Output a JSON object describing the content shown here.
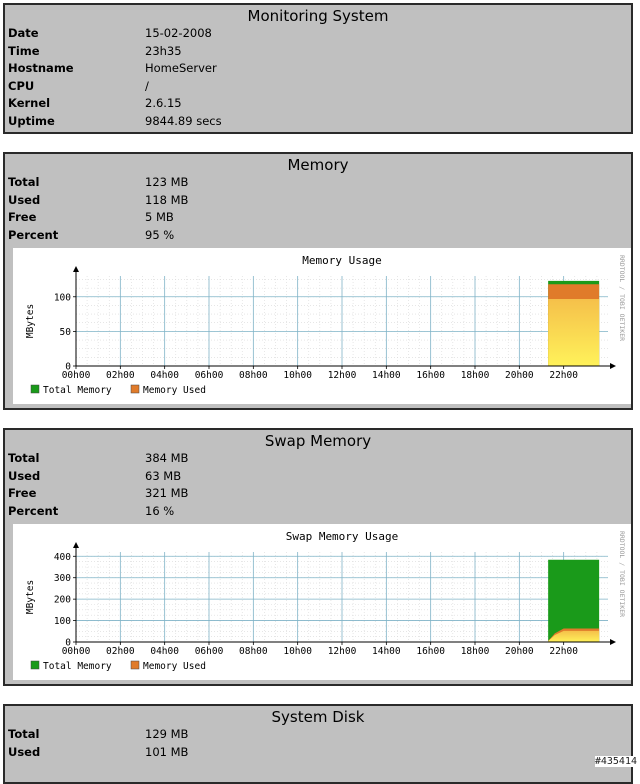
{
  "system": {
    "title": "Monitoring System",
    "rows": [
      {
        "label": "Date",
        "value": "15-02-2008"
      },
      {
        "label": "Time",
        "value": "23h35"
      },
      {
        "label": "Hostname",
        "value": "HomeServer"
      },
      {
        "label": "CPU",
        "value": "/"
      },
      {
        "label": "Kernel",
        "value": "2.6.15"
      },
      {
        "label": "Uptime",
        "value": "9844.89 secs"
      }
    ]
  },
  "memory": {
    "title": "Memory",
    "rows": [
      {
        "label": "Total",
        "value": "123 MB"
      },
      {
        "label": "Used",
        "value": "118 MB"
      },
      {
        "label": "Free",
        "value": "5 MB"
      },
      {
        "label": "Percent",
        "value": "95 %"
      }
    ]
  },
  "swap": {
    "title": "Swap Memory",
    "rows": [
      {
        "label": "Total",
        "value": "384 MB"
      },
      {
        "label": "Used",
        "value": "63 MB"
      },
      {
        "label": "Free",
        "value": "321 MB"
      },
      {
        "label": "Percent",
        "value": "16 %"
      }
    ]
  },
  "disk": {
    "title": "System Disk",
    "rows": [
      {
        "label": "Total",
        "value": "129 MB"
      },
      {
        "label": "Used",
        "value": "101 MB"
      }
    ]
  },
  "watermark": "#435414",
  "chart_data": [
    {
      "type": "area",
      "title": "Memory Usage",
      "ylabel": "MBytes",
      "xlabel": "",
      "side_label": "RRDTOOL / TOBI OETIKER",
      "ylim": [
        0,
        130
      ],
      "y_ticks": [
        0,
        50,
        100
      ],
      "x_ticks": [
        "00h00",
        "02h00",
        "04h00",
        "06h00",
        "08h00",
        "10h00",
        "12h00",
        "14h00",
        "16h00",
        "18h00",
        "20h00",
        "22h00"
      ],
      "xlim_hours": [
        0,
        24
      ],
      "grid": true,
      "legend_position": "bottom-left",
      "series": [
        {
          "name": "Total Memory",
          "color": "#1a9a1a",
          "x": [
            21.3,
            23.6
          ],
          "values": [
            123,
            123
          ]
        },
        {
          "name": "Memory Used",
          "color": "#e07b2a",
          "x": [
            21.3,
            23.6
          ],
          "values": [
            118,
            118
          ]
        }
      ]
    },
    {
      "type": "area",
      "title": "Swap Memory Usage",
      "ylabel": "MBytes",
      "xlabel": "",
      "side_label": "RRDTOOL / TOBI OETIKER",
      "ylim": [
        0,
        420
      ],
      "y_ticks": [
        0,
        100,
        200,
        300,
        400
      ],
      "x_ticks": [
        "00h00",
        "02h00",
        "04h00",
        "06h00",
        "08h00",
        "10h00",
        "12h00",
        "14h00",
        "16h00",
        "18h00",
        "20h00",
        "22h00"
      ],
      "xlim_hours": [
        0,
        24
      ],
      "grid": true,
      "legend_position": "bottom-left",
      "series": [
        {
          "name": "Total Memory",
          "color": "#1a9a1a",
          "x": [
            21.3,
            23.6
          ],
          "values": [
            384,
            384
          ]
        },
        {
          "name": "Memory Used",
          "color": "#e07b2a",
          "x": [
            21.3,
            21.6,
            22.0,
            23.6
          ],
          "values": [
            5,
            40,
            63,
            63
          ]
        }
      ]
    }
  ]
}
